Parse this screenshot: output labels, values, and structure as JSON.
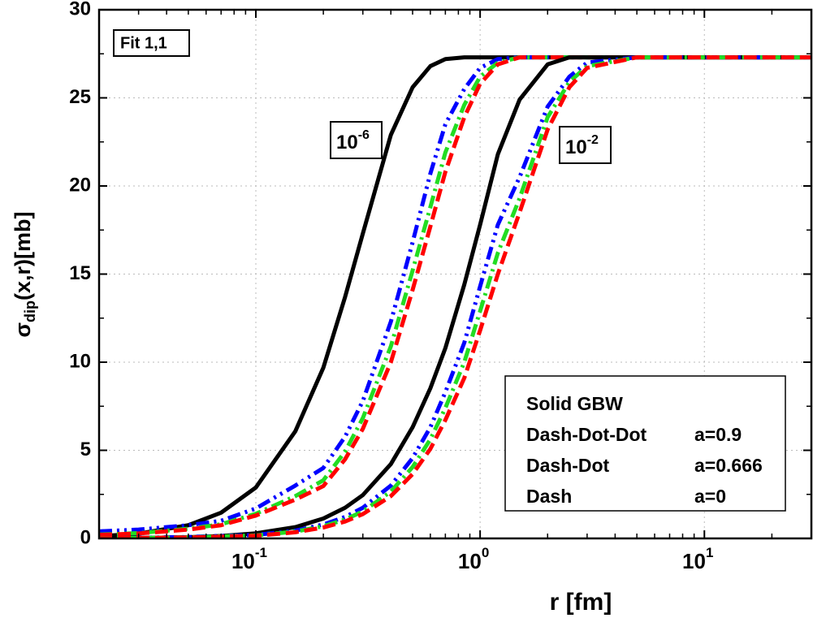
{
  "chart_data": {
    "type": "line",
    "xscale": "log",
    "xlabel": "r [fm]",
    "ylabel": {
      "symbol": "σ",
      "sub": "dip",
      "rest": "(x,r)[mb]"
    },
    "xlim": [
      0.02,
      30
    ],
    "ylim": [
      0,
      30
    ],
    "xticks": [
      {
        "value": 0.1,
        "label": "10",
        "exponent": "-1"
      },
      {
        "value": 1,
        "label": "10",
        "exponent": "0"
      },
      {
        "value": 10,
        "label": "10",
        "exponent": "1"
      }
    ],
    "yticks": [
      0,
      5,
      10,
      15,
      20,
      25,
      30
    ],
    "grid": true,
    "annotations": [
      {
        "text": "Fit 1,1"
      },
      {
        "label": "10",
        "exponent": "-6"
      },
      {
        "label": "10",
        "exponent": "-2"
      }
    ],
    "legend_rows": [
      [
        "Solid GBW"
      ],
      [
        "Dash-Dot-Dot",
        "a=0.9"
      ],
      [
        "Dash-Dot",
        "a=0.666"
      ],
      [
        "Dash",
        "a=0"
      ]
    ],
    "x": [
      0.02,
      0.03,
      0.05,
      0.07,
      0.1,
      0.15,
      0.2,
      0.25,
      0.3,
      0.4,
      0.5,
      0.6,
      0.7,
      0.85,
      1,
      1.2,
      1.5,
      2,
      2.5,
      3,
      5,
      30
    ],
    "series": [
      {
        "color": "#000000",
        "style": "solid",
        "values": [
          0.12,
          0.27,
          0.75,
          1.46,
          2.89,
          6.08,
          9.69,
          13.7,
          17.3,
          22.9,
          25.6,
          26.8,
          27.2,
          27.3,
          27.3,
          27.3,
          27.3,
          27.3,
          27.3,
          27.3,
          27.3,
          27.3
        ]
      },
      {
        "color": "#0000ff",
        "style": "dash-dot-dot",
        "values": [
          0.4,
          0.5,
          0.75,
          1.0,
          1.7,
          3.0,
          4.0,
          5.77,
          7.8,
          12.3,
          16.8,
          20.7,
          23.5,
          25.5,
          26.7,
          27.2,
          27.3,
          27.3,
          27.3,
          27.3,
          27.3,
          27.3
        ]
      },
      {
        "color": "#22dd22",
        "style": "dash-dot",
        "values": [
          0.22,
          0.3,
          0.55,
          0.8,
          1.4,
          2.4,
          3.3,
          4.93,
          6.83,
          10.9,
          15.2,
          18.8,
          21.9,
          24.6,
          26.2,
          27.0,
          27.3,
          27.3,
          27.3,
          27.3,
          27.3,
          27.3
        ]
      },
      {
        "color": "#ff0000",
        "style": "dash",
        "values": [
          0.2,
          0.28,
          0.5,
          0.75,
          1.3,
          2.2,
          2.97,
          4.49,
          6.22,
          10.0,
          14.1,
          17.7,
          20.8,
          23.9,
          25.8,
          26.9,
          27.3,
          27.3,
          27.3,
          27.3,
          27.3,
          27.3
        ]
      },
      {
        "color": "#000000",
        "style": "solid",
        "values": [
          0.01,
          0.03,
          0.07,
          0.14,
          0.29,
          0.64,
          1.13,
          1.74,
          2.46,
          4.22,
          6.31,
          8.52,
          10.8,
          14.4,
          17.8,
          21.8,
          24.9,
          26.9,
          27.3,
          27.3,
          27.3,
          27.3
        ]
      },
      {
        "color": "#0000ff",
        "style": "dash-dot-dot",
        "values": [
          0.02,
          0.04,
          0.08,
          0.14,
          0.2,
          0.44,
          0.79,
          1.22,
          1.74,
          3.0,
          4.56,
          6.31,
          8.3,
          11.1,
          14.3,
          17.8,
          20.5,
          24.5,
          26.2,
          27.0,
          27.3,
          27.3
        ]
      },
      {
        "color": "#22dd22",
        "style": "dash-dot",
        "values": [
          0.02,
          0.03,
          0.06,
          0.12,
          0.17,
          0.39,
          0.69,
          1.07,
          1.53,
          2.66,
          4.05,
          5.62,
          7.4,
          10.0,
          12.9,
          16.2,
          19.3,
          23.9,
          25.9,
          26.8,
          27.3,
          27.3
        ]
      },
      {
        "color": "#ff0000",
        "style": "dash",
        "values": [
          0.01,
          0.03,
          0.05,
          0.1,
          0.15,
          0.35,
          0.62,
          0.96,
          1.38,
          2.4,
          3.65,
          5.08,
          6.72,
          9.1,
          11.8,
          15.0,
          18.5,
          23.2,
          25.6,
          26.7,
          27.3,
          27.3
        ]
      }
    ]
  }
}
